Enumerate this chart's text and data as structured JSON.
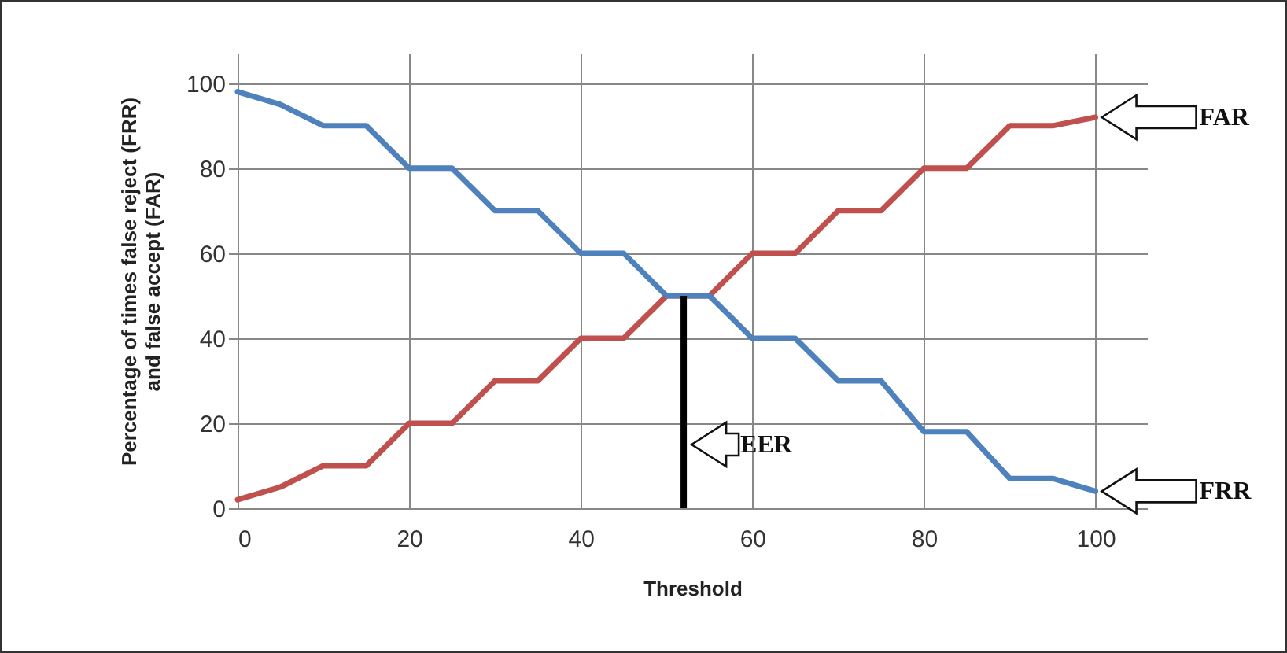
{
  "chart_data": {
    "type": "line",
    "xlabel": "Threshold",
    "ylabel": "Percentage of times false  reject (FRR) and false accept  (FAR)",
    "x": [
      0,
      5,
      10,
      15,
      20,
      25,
      30,
      35,
      40,
      45,
      50,
      55,
      60,
      65,
      70,
      75,
      80,
      85,
      90,
      95,
      100
    ],
    "series": [
      {
        "name": "FAR",
        "color": "#c0504d",
        "values": [
          2,
          5,
          10,
          10,
          20,
          20,
          30,
          30,
          40,
          40,
          50,
          50,
          60,
          60,
          70,
          70,
          80,
          80,
          90,
          90,
          92
        ]
      },
      {
        "name": "FRR",
        "color": "#4f81bd",
        "values": [
          98,
          95,
          90,
          90,
          80,
          80,
          70,
          70,
          60,
          60,
          50,
          50,
          40,
          40,
          30,
          30,
          18,
          18,
          7,
          7,
          4
        ]
      }
    ],
    "xlim": [
      0,
      106
    ],
    "ylim": [
      0,
      107
    ],
    "xticks": [
      0,
      20,
      40,
      60,
      80,
      100
    ],
    "yticks": [
      0,
      20,
      40,
      60,
      80,
      100
    ],
    "grid": true,
    "marker": "none",
    "line_style": "solid",
    "ref_lines": [
      {
        "axis": "x",
        "value": 52,
        "label": "EER",
        "color": "#000000"
      }
    ]
  }
}
